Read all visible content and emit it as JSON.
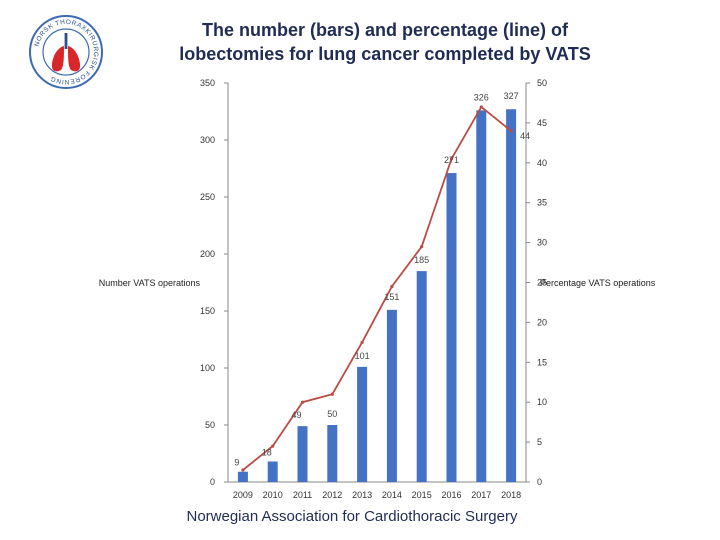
{
  "title": "The number (bars) and percentage (line) of lobectomies for lung cancer completed by VATS",
  "footer": "Norwegian Association for Cardiothoracic Surgery",
  "logo": {
    "icon": "lungs-emblem-icon",
    "ring_text": "NORSK THORAXKIRURGISK FORENING"
  },
  "colors": {
    "bar": "#4472c4",
    "line": "#b94c45",
    "title": "#1f2d55",
    "logo_ring": "#3d6bb3",
    "logo_lungs": "#d9262b"
  },
  "chart_data": {
    "type": "bar",
    "title": "The number (bars) and percentage (line) of lobectomies for lung cancer completed by VATS",
    "categories": [
      "2009",
      "2010",
      "2011",
      "2012",
      "2013",
      "2014",
      "2015",
      "2016",
      "2017",
      "2018"
    ],
    "series": [
      {
        "name": "Number VATS operations",
        "type": "bar",
        "axis": "left",
        "values": [
          9,
          18,
          49,
          50,
          101,
          151,
          185,
          271,
          326,
          327
        ],
        "labels": [
          "9",
          "18",
          "49",
          "50",
          "101",
          "151",
          "185",
          "271",
          "326",
          "327"
        ]
      },
      {
        "name": "Percentage VATS operations",
        "type": "line",
        "axis": "right",
        "values": [
          1.5,
          4.5,
          10,
          11,
          17.5,
          24.5,
          29.5,
          40.5,
          47,
          44
        ],
        "labels": [
          "",
          "",
          "",
          "",
          "",
          "",
          "",
          "",
          "",
          "44"
        ]
      }
    ],
    "ylabel": "Number VATS operations",
    "ylabel_right": "Percentage VATS operations",
    "ylim": [
      0,
      350
    ],
    "ylim_right": [
      0,
      50
    ],
    "yticks": [
      "0",
      "50",
      "100",
      "150",
      "200",
      "250",
      "300",
      "350"
    ],
    "yticks_right": [
      "0",
      "5",
      "10",
      "15",
      "20",
      "25",
      "30",
      "35",
      "40",
      "45",
      "50"
    ],
    "grid": false,
    "legend": "axis-labels"
  }
}
